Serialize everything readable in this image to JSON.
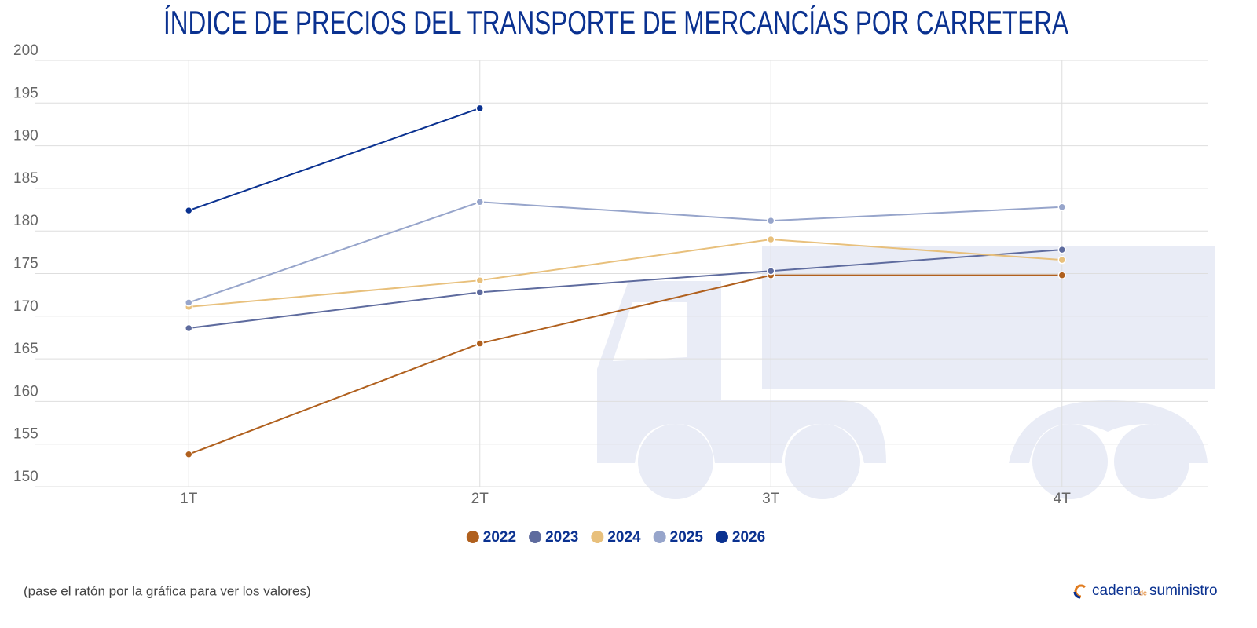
{
  "chart_data": {
    "type": "line",
    "title": "ÍNDICE DE PRECIOS DEL TRANSPORTE DE MERCANCÍAS POR CARRETERA",
    "categories": [
      "1T",
      "2T",
      "3T",
      "4T"
    ],
    "series": [
      {
        "name": "2022",
        "color": "#b0601e",
        "values": [
          153.8,
          166.8,
          174.8,
          174.8
        ]
      },
      {
        "name": "2023",
        "color": "#5e6b9e",
        "values": [
          168.6,
          172.8,
          175.3,
          177.8
        ]
      },
      {
        "name": "2024",
        "color": "#e8c07c",
        "values": [
          171.1,
          174.2,
          179.0,
          176.6
        ]
      },
      {
        "name": "2025",
        "color": "#97a5cb",
        "values": [
          171.6,
          183.4,
          181.2,
          182.8
        ]
      },
      {
        "name": "2026",
        "color": "#0a3190",
        "values": [
          182.4,
          194.4,
          null,
          null
        ]
      }
    ],
    "ylim": [
      150,
      200
    ],
    "yticks": [
      150,
      155,
      160,
      165,
      170,
      175,
      180,
      185,
      190,
      195,
      200
    ],
    "grid": true,
    "legend": "bottom",
    "footnote": "(pase el ratón por la gráfica para ver los valores)",
    "brand": {
      "name": "cadena",
      "connector": "de",
      "suffix": "suministro"
    }
  }
}
